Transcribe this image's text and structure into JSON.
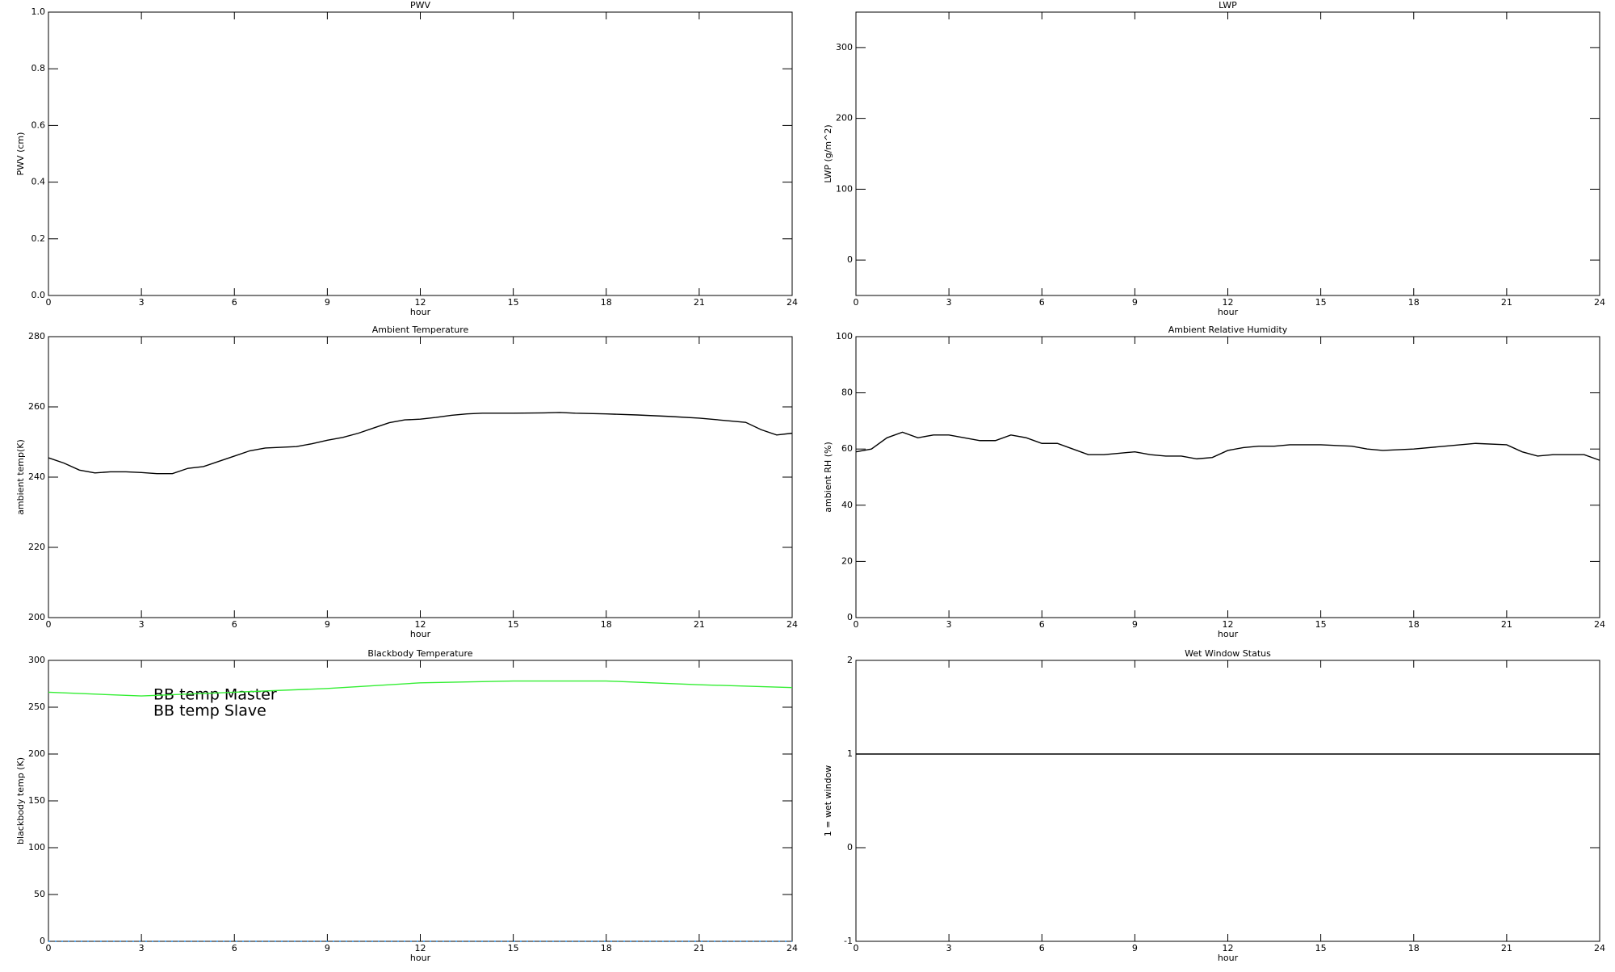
{
  "chart_data": [
    {
      "type": "line",
      "title": "PWV",
      "xlabel": "hour",
      "ylabel": "PWV (cm)",
      "xlim": [
        0,
        24
      ],
      "xticks": [
        0,
        3,
        6,
        9,
        12,
        15,
        18,
        21,
        24
      ],
      "ylim": [
        0,
        1
      ],
      "yticks": [
        {
          "value": 0,
          "label": "0.0"
        },
        0.2,
        0.4,
        0.6,
        0.8,
        {
          "value": 1,
          "label": "1.0"
        }
      ],
      "x": [],
      "series": []
    },
    {
      "type": "line",
      "title": "LWP",
      "xlabel": "hour",
      "ylabel": "LWP (g/m^2)",
      "xlim": [
        0,
        24
      ],
      "xticks": [
        0,
        3,
        6,
        9,
        12,
        15,
        18,
        21,
        24
      ],
      "ylim": [
        -50,
        350
      ],
      "yticks": [
        0,
        100,
        200,
        300
      ],
      "x": [],
      "series": []
    },
    {
      "type": "line",
      "title": "Ambient Temperature",
      "xlabel": "hour",
      "ylabel": "ambient temp(K)",
      "xlim": [
        0,
        24
      ],
      "xticks": [
        0,
        3,
        6,
        9,
        12,
        15,
        18,
        21,
        24
      ],
      "ylim": [
        200,
        280
      ],
      "yticks": [
        200,
        220,
        240,
        260,
        280
      ],
      "x": [
        0,
        0.5,
        1,
        1.5,
        2,
        2.5,
        3,
        3.5,
        4,
        4.5,
        5,
        5.5,
        6,
        6.5,
        7,
        7.5,
        8,
        8.5,
        9,
        9.5,
        10,
        10.5,
        11,
        11.5,
        12,
        12.5,
        13,
        13.5,
        14,
        15,
        16,
        16.5,
        17,
        18,
        19,
        20,
        21,
        22,
        22.5,
        23,
        23.5,
        24
      ],
      "series": [
        {
          "color": "#000000",
          "values": [
            245.5,
            244,
            242,
            241.2,
            241.5,
            241.5,
            241.3,
            241,
            241,
            242.5,
            243,
            244.5,
            246,
            247.5,
            248.3,
            248.5,
            248.7,
            249.5,
            250.5,
            251.3,
            252.5,
            254,
            255.5,
            256.3,
            256.5,
            257,
            257.6,
            258,
            258.2,
            258.2,
            258.3,
            258.4,
            258.2,
            258,
            257.7,
            257.3,
            256.8,
            256,
            255.6,
            253.5,
            252,
            252.5
          ]
        }
      ]
    },
    {
      "type": "line",
      "title": "Ambient Relative Humidity",
      "xlabel": "hour",
      "ylabel": "ambient RH (%)",
      "xlim": [
        0,
        24
      ],
      "xticks": [
        0,
        3,
        6,
        9,
        12,
        15,
        18,
        21,
        24
      ],
      "ylim": [
        0,
        100
      ],
      "yticks": [
        0,
        20,
        40,
        60,
        80,
        100
      ],
      "x": [
        0,
        0.5,
        1,
        1.5,
        2,
        2.5,
        3,
        3.5,
        4,
        4.5,
        5,
        5.5,
        6,
        6.5,
        7,
        7.5,
        8,
        8.5,
        9,
        9.5,
        10,
        10.5,
        11,
        11.5,
        12,
        12.5,
        13,
        13.5,
        14,
        15,
        16,
        16.5,
        17,
        18,
        19,
        20,
        21,
        21.5,
        22,
        22.5,
        23,
        23.5,
        24
      ],
      "series": [
        {
          "color": "#000000",
          "values": [
            59,
            60,
            64,
            66,
            64,
            65,
            65,
            64,
            63,
            63,
            65,
            64,
            62,
            62,
            60,
            58,
            58,
            58.5,
            59,
            58,
            57.5,
            57.5,
            56.5,
            57,
            59.5,
            60.5,
            61,
            61,
            61.5,
            61.5,
            61,
            60,
            59.5,
            60,
            61,
            62,
            61.5,
            59,
            57.5,
            58,
            58,
            58,
            56
          ]
        }
      ]
    },
    {
      "type": "line",
      "title": "Blackbody Temperature",
      "xlabel": "hour",
      "ylabel": "blackbody temp (K)",
      "xlim": [
        0,
        24
      ],
      "xticks": [
        0,
        3,
        6,
        9,
        12,
        15,
        18,
        21,
        24
      ],
      "ylim": [
        0,
        300
      ],
      "yticks": [
        0,
        50,
        100,
        150,
        200,
        250,
        300
      ],
      "x": [
        0,
        3,
        6,
        9,
        12,
        15,
        18,
        21,
        24
      ],
      "series": [
        {
          "name": "BB temp Master",
          "color": "#1e88e5",
          "dashed": true,
          "values": [
            0,
            0,
            0,
            0,
            0,
            0,
            0,
            0,
            0
          ]
        },
        {
          "name": "BB temp Slave",
          "color": "#33ee33",
          "values": [
            266,
            262,
            266,
            270,
            276,
            278,
            278,
            274,
            271
          ]
        }
      ]
    },
    {
      "type": "line",
      "title": "Wet Window Status",
      "xlabel": "hour",
      "ylabel": "1 = wet window",
      "xlim": [
        0,
        24
      ],
      "xticks": [
        0,
        3,
        6,
        9,
        12,
        15,
        18,
        21,
        24
      ],
      "ylim": [
        -1,
        2
      ],
      "yticks": [
        -1,
        0,
        1,
        2
      ],
      "x": [
        0,
        24
      ],
      "series": [
        {
          "color": "#000000",
          "values": [
            1,
            1
          ]
        }
      ]
    }
  ]
}
